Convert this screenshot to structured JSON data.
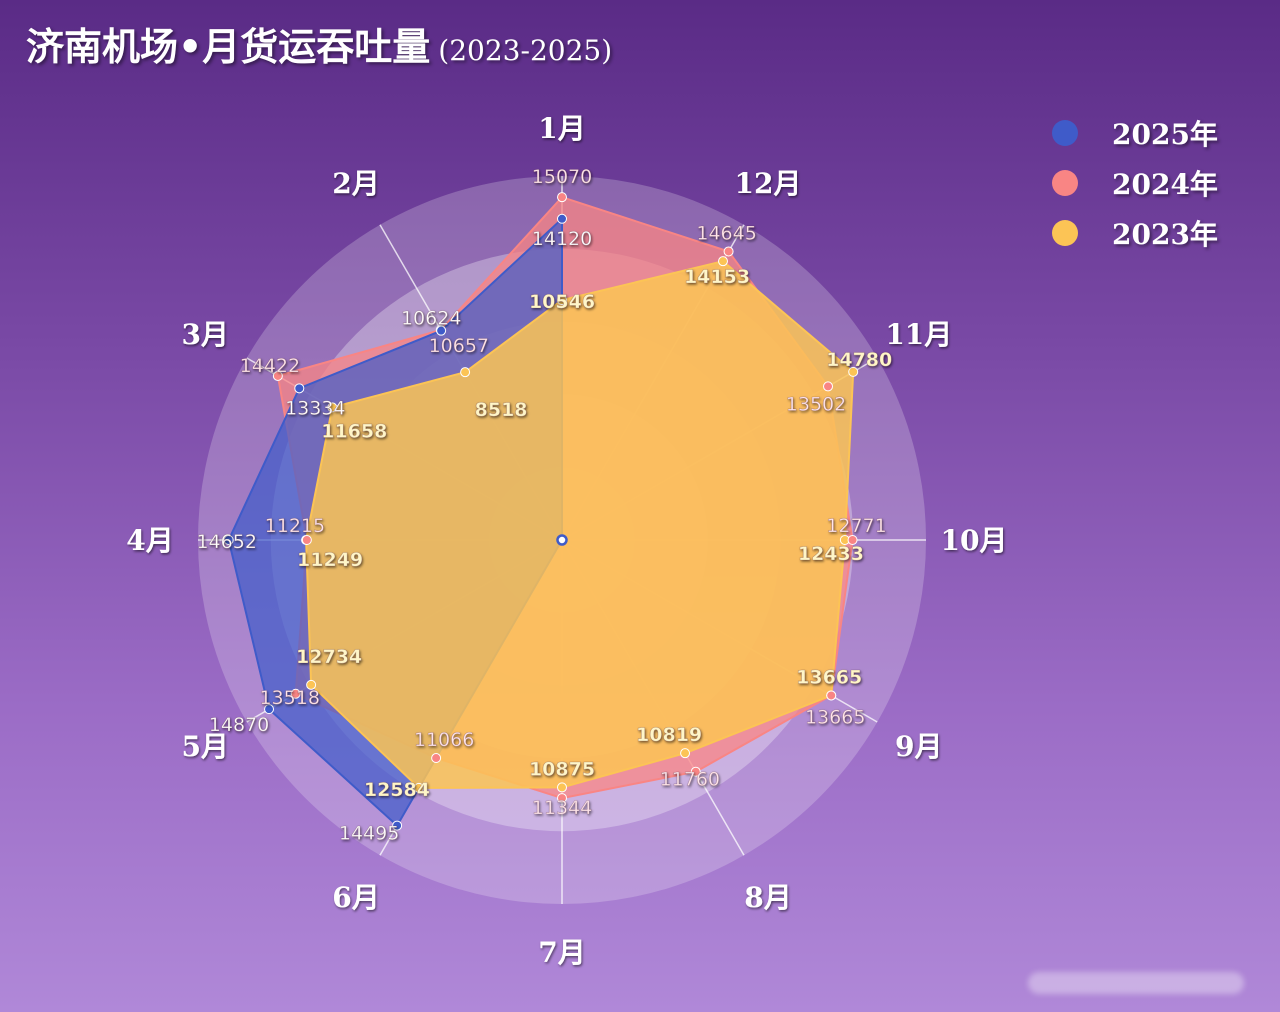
{
  "title": {
    "main": "济南机场•月货运吞吐量",
    "sub": "(2023-2025)"
  },
  "chart_data": {
    "type": "radar",
    "categories": [
      "1月",
      "12月",
      "11月",
      "10月",
      "9月",
      "8月",
      "7月",
      "6月",
      "5月",
      "4月",
      "3月",
      "2月"
    ],
    "radius_range": [
      0,
      16000
    ],
    "series": [
      {
        "name": "2023年",
        "color": "#fcc455",
        "values": {
          "1月": 10546,
          "12月": 14153,
          "11月": 14780,
          "10月": 12433,
          "9月": 13665,
          "8月": 10819,
          "7月": 10875,
          "6月": 12584,
          "5月": 12734,
          "4月": 11249,
          "3月": 11658,
          "2月": 8518
        }
      },
      {
        "name": "2024年",
        "color": "#f98584",
        "values": {
          "1月": 15070,
          "12月": 14645,
          "11月": 13502,
          "10月": 12771,
          "9月": 13665,
          "8月": 11760,
          "7月": 11344,
          "6月": 11066,
          "5月": 13518,
          "4月": 11215,
          "3月": 14422,
          "2月": 10657
        }
      },
      {
        "name": "2025年",
        "color": "#3f5bc9",
        "values": {
          "1月": 14120,
          "6月": 14495,
          "5月": 14870,
          "4月": 14652,
          "3月": 13334,
          "2月": 10624
        }
      }
    ],
    "legend_order": [
      "2025年",
      "2024年",
      "2023年"
    ],
    "legend_position": "top-right"
  }
}
